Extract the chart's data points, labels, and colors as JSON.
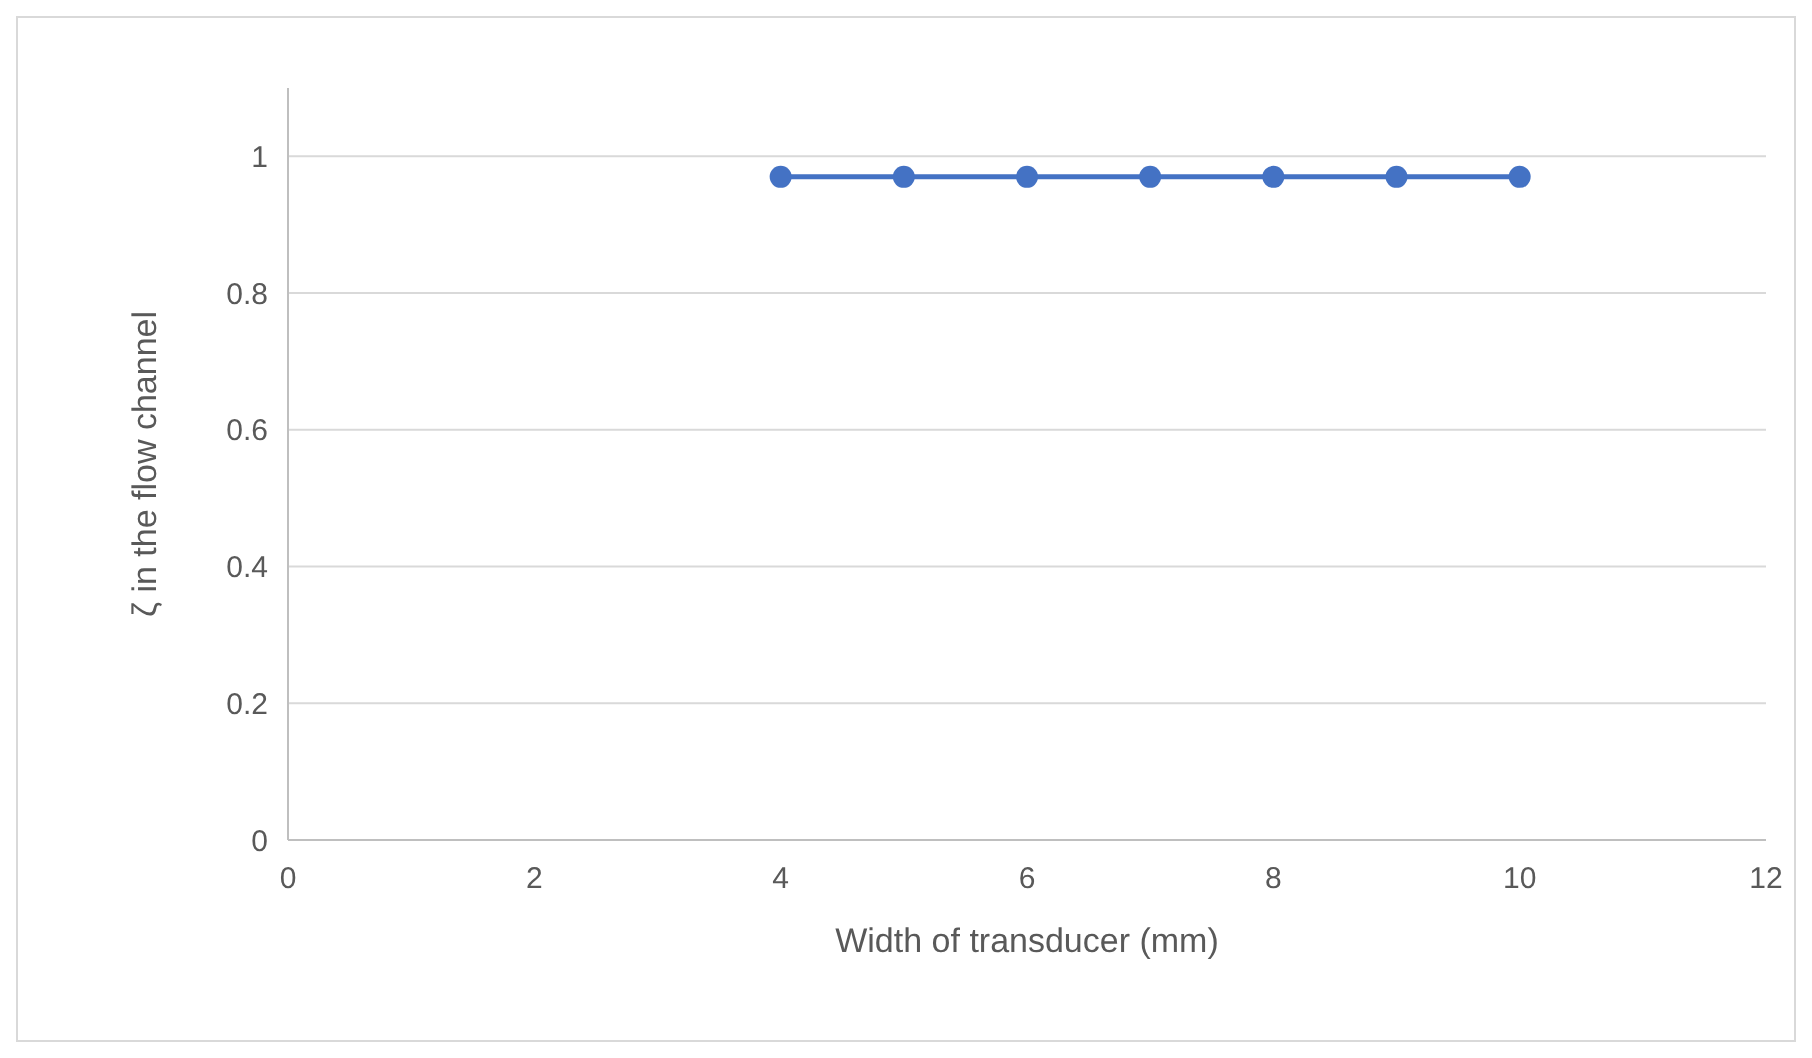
{
  "chart_data": {
    "type": "line",
    "xlabel": "Width of transducer (mm)",
    "ylabel": "ζ in the flow channel",
    "series": [
      {
        "color": "#4472c4",
        "x": [
          4,
          5,
          6,
          7,
          8,
          9,
          10
        ],
        "values": [
          0.97,
          0.97,
          0.97,
          0.97,
          0.97,
          0.97,
          0.97
        ]
      }
    ],
    "xlim": [
      0,
      12
    ],
    "xticks": [
      0,
      2,
      4,
      6,
      8,
      10,
      12
    ],
    "ylim": [
      0,
      1.1
    ],
    "yticks": [
      0,
      0.2,
      0.4,
      0.6,
      0.8,
      1
    ],
    "grid": "y",
    "marker": "circle",
    "line_style": "solid"
  }
}
